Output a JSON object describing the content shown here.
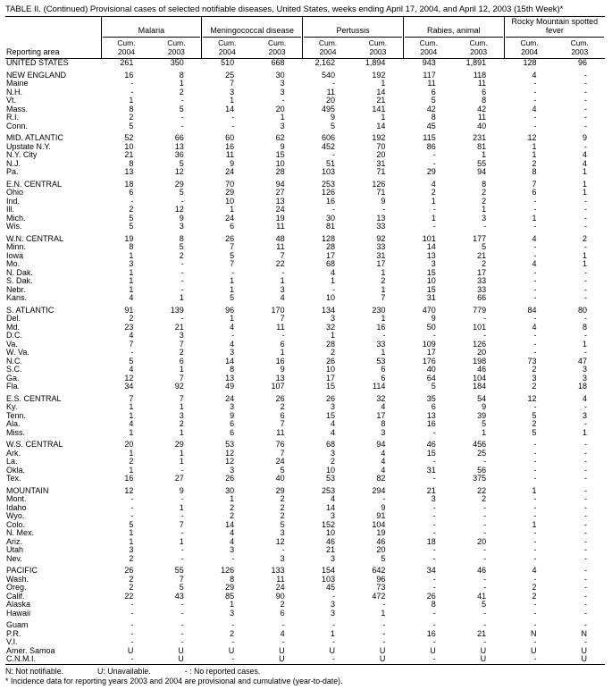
{
  "title": "TABLE II. (Continued) Provisional cases of selected notifiable diseases, United States, weeks ending April 17, 2004, and April 12, 2003 (15th Week)*",
  "header": {
    "reporting_area": "Reporting area",
    "groups": [
      "Malaria",
      "Meningococcal disease",
      "Pertussis",
      "Rabies, animal",
      "Rocky Mountain spotted fever"
    ],
    "subheaders": [
      [
        "Cum.",
        "2004"
      ],
      [
        "Cum.",
        "2003"
      ]
    ]
  },
  "sections": [
    {
      "rows": [
        [
          "UNITED STATES",
          "261",
          "350",
          "510",
          "668",
          "2,162",
          "1,894",
          "943",
          "1,891",
          "128",
          "96"
        ]
      ]
    },
    {
      "rows": [
        [
          "NEW ENGLAND",
          "16",
          "8",
          "25",
          "30",
          "540",
          "192",
          "117",
          "118",
          "4",
          "-"
        ],
        [
          "Maine",
          "-",
          "1",
          "7",
          "3",
          "-",
          "1",
          "11",
          "11",
          "-",
          "-"
        ],
        [
          "N.H.",
          "-",
          "2",
          "3",
          "3",
          "11",
          "14",
          "6",
          "6",
          "-",
          "-"
        ],
        [
          "Vt.",
          "1",
          "-",
          "1",
          "-",
          "20",
          "21",
          "5",
          "8",
          "-",
          "-"
        ],
        [
          "Mass.",
          "8",
          "5",
          "14",
          "20",
          "495",
          "141",
          "42",
          "42",
          "4",
          "-"
        ],
        [
          "R.I.",
          "2",
          "-",
          "-",
          "1",
          "9",
          "1",
          "8",
          "11",
          "-",
          "-"
        ],
        [
          "Conn.",
          "5",
          "-",
          "-",
          "3",
          "5",
          "14",
          "45",
          "40",
          "-",
          "-"
        ]
      ]
    },
    {
      "rows": [
        [
          "MID. ATLANTIC",
          "52",
          "66",
          "60",
          "62",
          "606",
          "192",
          "115",
          "231",
          "12",
          "9"
        ],
        [
          "Upstate N.Y.",
          "10",
          "13",
          "16",
          "9",
          "452",
          "70",
          "86",
          "81",
          "1",
          "-"
        ],
        [
          "N.Y. City",
          "21",
          "36",
          "11",
          "15",
          "-",
          "20",
          "-",
          "1",
          "1",
          "4"
        ],
        [
          "N.J.",
          "8",
          "5",
          "9",
          "10",
          "51",
          "31",
          "-",
          "55",
          "2",
          "4"
        ],
        [
          "Pa.",
          "13",
          "12",
          "24",
          "28",
          "103",
          "71",
          "29",
          "94",
          "8",
          "1"
        ]
      ]
    },
    {
      "rows": [
        [
          "E.N. CENTRAL",
          "18",
          "29",
          "70",
          "94",
          "253",
          "126",
          "4",
          "8",
          "7",
          "1"
        ],
        [
          "Ohio",
          "6",
          "5",
          "29",
          "27",
          "126",
          "71",
          "2",
          "2",
          "6",
          "1"
        ],
        [
          "Ind.",
          "-",
          "-",
          "10",
          "13",
          "16",
          "9",
          "1",
          "2",
          "-",
          "-"
        ],
        [
          "Ill.",
          "2",
          "12",
          "1",
          "24",
          "-",
          "-",
          "-",
          "1",
          "-",
          "-"
        ],
        [
          "Mich.",
          "5",
          "9",
          "24",
          "19",
          "30",
          "13",
          "1",
          "3",
          "1",
          "-"
        ],
        [
          "Wis.",
          "5",
          "3",
          "6",
          "11",
          "81",
          "33",
          "-",
          "-",
          "-",
          "-"
        ]
      ]
    },
    {
      "rows": [
        [
          "W.N. CENTRAL",
          "19",
          "8",
          "26",
          "48",
          "128",
          "92",
          "101",
          "177",
          "4",
          "2"
        ],
        [
          "Minn.",
          "8",
          "5",
          "7",
          "11",
          "28",
          "33",
          "14",
          "5",
          "-",
          "-"
        ],
        [
          "Iowa",
          "1",
          "2",
          "5",
          "7",
          "17",
          "31",
          "13",
          "21",
          "-",
          "1"
        ],
        [
          "Mo.",
          "3",
          "-",
          "7",
          "22",
          "68",
          "17",
          "3",
          "2",
          "4",
          "1"
        ],
        [
          "N. Dak.",
          "1",
          "-",
          "-",
          "-",
          "4",
          "1",
          "15",
          "17",
          "-",
          "-"
        ],
        [
          "S. Dak.",
          "1",
          "-",
          "1",
          "1",
          "1",
          "2",
          "10",
          "33",
          "-",
          "-"
        ],
        [
          "Nebr.",
          "1",
          "-",
          "1",
          "3",
          "-",
          "1",
          "15",
          "33",
          "-",
          "-"
        ],
        [
          "Kans.",
          "4",
          "1",
          "5",
          "4",
          "10",
          "7",
          "31",
          "66",
          "-",
          "-"
        ]
      ]
    },
    {
      "rows": [
        [
          "S. ATLANTIC",
          "91",
          "139",
          "96",
          "170",
          "134",
          "230",
          "470",
          "779",
          "84",
          "80"
        ],
        [
          "Del.",
          "2",
          "-",
          "1",
          "7",
          "3",
          "1",
          "9",
          "-",
          "-",
          "-"
        ],
        [
          "Md.",
          "23",
          "21",
          "4",
          "11",
          "32",
          "16",
          "50",
          "101",
          "4",
          "8"
        ],
        [
          "D.C.",
          "4",
          "3",
          "-",
          "-",
          "1",
          "-",
          "-",
          "-",
          "-",
          "-"
        ],
        [
          "Va.",
          "7",
          "7",
          "4",
          "6",
          "28",
          "33",
          "109",
          "126",
          "-",
          "1"
        ],
        [
          "W. Va.",
          "-",
          "2",
          "3",
          "1",
          "2",
          "1",
          "17",
          "20",
          "-",
          "-"
        ],
        [
          "N.C.",
          "5",
          "6",
          "14",
          "16",
          "26",
          "53",
          "176",
          "198",
          "73",
          "47"
        ],
        [
          "S.C.",
          "4",
          "1",
          "8",
          "9",
          "10",
          "6",
          "40",
          "46",
          "2",
          "3"
        ],
        [
          "Ga.",
          "12",
          "7",
          "13",
          "13",
          "17",
          "6",
          "64",
          "104",
          "3",
          "3"
        ],
        [
          "Fla.",
          "34",
          "92",
          "49",
          "107",
          "15",
          "114",
          "5",
          "184",
          "2",
          "18"
        ]
      ]
    },
    {
      "rows": [
        [
          "E.S. CENTRAL",
          "7",
          "7",
          "24",
          "26",
          "26",
          "32",
          "35",
          "54",
          "12",
          "4"
        ],
        [
          "Ky.",
          "1",
          "1",
          "3",
          "2",
          "3",
          "4",
          "6",
          "9",
          "-",
          "-"
        ],
        [
          "Tenn.",
          "1",
          "3",
          "9",
          "6",
          "15",
          "17",
          "13",
          "39",
          "5",
          "3"
        ],
        [
          "Ala.",
          "4",
          "2",
          "6",
          "7",
          "4",
          "8",
          "16",
          "5",
          "2",
          "-"
        ],
        [
          "Miss.",
          "1",
          "1",
          "6",
          "11",
          "4",
          "3",
          "-",
          "1",
          "5",
          "1"
        ]
      ]
    },
    {
      "rows": [
        [
          "W.S. CENTRAL",
          "20",
          "29",
          "53",
          "76",
          "68",
          "94",
          "46",
          "456",
          "-",
          "-"
        ],
        [
          "Ark.",
          "1",
          "1",
          "12",
          "7",
          "3",
          "4",
          "15",
          "25",
          "-",
          "-"
        ],
        [
          "La.",
          "2",
          "1",
          "12",
          "24",
          "2",
          "4",
          "-",
          "-",
          "-",
          "-"
        ],
        [
          "Okla.",
          "1",
          "-",
          "3",
          "5",
          "10",
          "4",
          "31",
          "56",
          "-",
          "-"
        ],
        [
          "Tex.",
          "16",
          "27",
          "26",
          "40",
          "53",
          "82",
          "-",
          "375",
          "-",
          "-"
        ]
      ]
    },
    {
      "rows": [
        [
          "MOUNTAIN",
          "12",
          "9",
          "30",
          "29",
          "253",
          "294",
          "21",
          "22",
          "1",
          "-"
        ],
        [
          "Mont.",
          "-",
          "-",
          "1",
          "2",
          "4",
          "-",
          "3",
          "2",
          "-",
          "-"
        ],
        [
          "Idaho",
          "-",
          "1",
          "2",
          "2",
          "14",
          "9",
          "-",
          "-",
          "-",
          "-"
        ],
        [
          "Wyo.",
          "-",
          "-",
          "2",
          "2",
          "3",
          "91",
          "-",
          "-",
          "-",
          "-"
        ],
        [
          "Colo.",
          "5",
          "7",
          "14",
          "5",
          "152",
          "104",
          "-",
          "-",
          "1",
          "-"
        ],
        [
          "N. Mex.",
          "1",
          "-",
          "4",
          "3",
          "10",
          "19",
          "-",
          "-",
          "-",
          "-"
        ],
        [
          "Ariz.",
          "1",
          "1",
          "4",
          "12",
          "46",
          "46",
          "18",
          "20",
          "-",
          "-"
        ],
        [
          "Utah",
          "3",
          "-",
          "3",
          "-",
          "21",
          "20",
          "-",
          "-",
          "-",
          "-"
        ],
        [
          "Nev.",
          "2",
          "-",
          "-",
          "3",
          "3",
          "5",
          "-",
          "-",
          "-",
          "-"
        ]
      ]
    },
    {
      "rows": [
        [
          "PACIFIC",
          "26",
          "55",
          "126",
          "133",
          "154",
          "642",
          "34",
          "46",
          "4",
          "-"
        ],
        [
          "Wash.",
          "2",
          "7",
          "8",
          "11",
          "103",
          "96",
          "-",
          "-",
          "-",
          "-"
        ],
        [
          "Oreg.",
          "2",
          "5",
          "29",
          "24",
          "45",
          "73",
          "-",
          "-",
          "2",
          "-"
        ],
        [
          "Calif.",
          "22",
          "43",
          "85",
          "90",
          "-",
          "472",
          "26",
          "41",
          "2",
          "-"
        ],
        [
          "Alaska",
          "-",
          "-",
          "1",
          "2",
          "3",
          "-",
          "8",
          "5",
          "-",
          "-"
        ],
        [
          "Hawaii",
          "-",
          "-",
          "3",
          "6",
          "3",
          "1",
          "-",
          "-",
          "-",
          "-"
        ]
      ]
    },
    {
      "rows": [
        [
          "Guam",
          "-",
          "-",
          "-",
          "-",
          "-",
          "-",
          "-",
          "-",
          "-",
          "-"
        ],
        [
          "P.R.",
          "-",
          "-",
          "2",
          "4",
          "1",
          "-",
          "16",
          "21",
          "N",
          "N"
        ],
        [
          "V.I.",
          "-",
          "-",
          "-",
          "-",
          "-",
          "-",
          "-",
          "-",
          "-",
          "-"
        ],
        [
          "Amer. Samoa",
          "U",
          "U",
          "U",
          "U",
          "U",
          "U",
          "U",
          "U",
          "U",
          "U"
        ],
        [
          "C.N.M.I.",
          "-",
          "U",
          "-",
          "U",
          "-",
          "U",
          "-",
          "U",
          "-",
          "U"
        ]
      ]
    }
  ],
  "legend": {
    "n": "N: Not notifiable.",
    "u": "U: Unavailable.",
    "dash": "- : No reported cases."
  },
  "footnote": "* Incidence data for reporting years 2003 and 2004 are provisional and cumulative (year-to-date)."
}
